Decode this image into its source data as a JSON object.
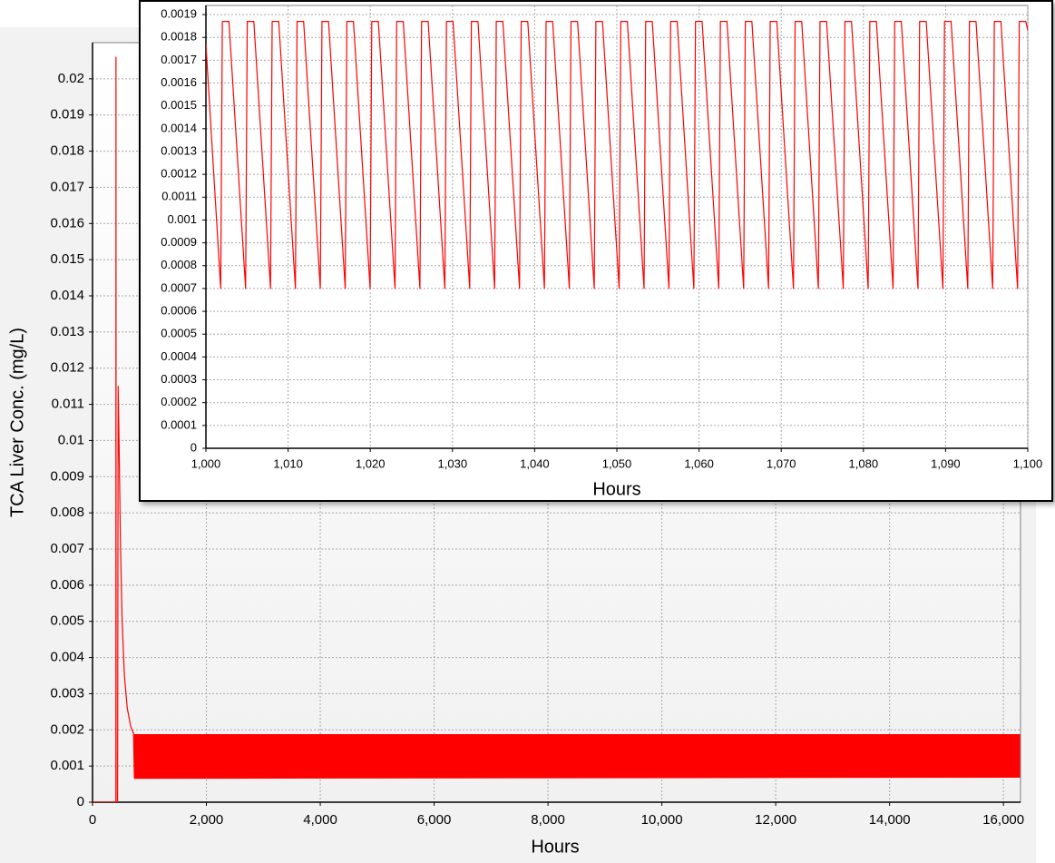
{
  "chart_data": [
    {
      "type": "line",
      "ylabel": "TCA Liver Conc. (mg/L)",
      "xlabel": "Hours",
      "xlim": [
        0,
        16300
      ],
      "ylim": [
        0,
        0.021
      ],
      "xticks": [
        0,
        {
          "value": 2000,
          "label": "2,000"
        },
        {
          "value": 4000,
          "label": "4,000"
        },
        {
          "value": 6000,
          "label": "6,000"
        },
        {
          "value": 8000,
          "label": "8,000"
        },
        {
          "value": 10000,
          "label": "10,000"
        },
        {
          "value": 12000,
          "label": "12,000"
        },
        {
          "value": 14000,
          "label": "14,000"
        },
        {
          "value": 16000,
          "label": "16,000"
        }
      ],
      "yticks": [
        0,
        0.001,
        0.002,
        0.003,
        0.004,
        0.005,
        0.006,
        0.007,
        0.008,
        0.009,
        0.01,
        0.011,
        0.012,
        0.013,
        0.014,
        0.015,
        0.016,
        0.017,
        0.018,
        0.019,
        0.02
      ],
      "grid": true,
      "series": [
        {
          "color": "#ff0000",
          "x": [
            0,
            410,
            412,
            414,
            440,
            450,
            470,
            490,
            520,
            560,
            610,
            670,
            720,
            735
          ],
          "values": [
            0,
            0,
            0.0206,
            0,
            0,
            0.0115,
            0.0095,
            0.0072,
            0.005,
            0.0035,
            0.0026,
            0.0021,
            0.0019,
            0.0007
          ]
        },
        {
          "color": "#ff0000",
          "x": [
            735,
            16284
          ],
          "upper": [
            0.00187,
            0.00187
          ],
          "lower": [
            0.00066,
            0.00069
          ]
        }
      ]
    },
    {
      "type": "line",
      "xlabel": "Hours",
      "xlim": [
        1000,
        1100
      ],
      "ylim": [
        0,
        0.00194
      ],
      "xticks": [
        {
          "value": 1000,
          "label": "1,000"
        },
        {
          "value": 1010,
          "label": "1,010"
        },
        {
          "value": 1020,
          "label": "1,020"
        },
        {
          "value": 1030,
          "label": "1,030"
        },
        {
          "value": 1040,
          "label": "1,040"
        },
        {
          "value": 1050,
          "label": "1,050"
        },
        {
          "value": 1060,
          "label": "1,060"
        },
        {
          "value": 1070,
          "label": "1,070"
        },
        {
          "value": 1080,
          "label": "1,080"
        },
        {
          "value": 1090,
          "label": "1,090"
        },
        {
          "value": 1100,
          "label": "1,100"
        }
      ],
      "yticks": [
        0,
        0.0001,
        0.0002,
        0.0003,
        0.0004,
        0.0005,
        0.0006,
        0.0007,
        0.0008,
        0.0009,
        0.001,
        0.0011,
        0.0012,
        0.0013,
        0.0014,
        0.0015,
        0.0016,
        0.0017,
        0.0018,
        0.0019
      ],
      "grid": true,
      "series": [
        {
          "color": "#ff0000",
          "x": [
            1000,
            1001.8,
            1002,
            1002.8,
            1004.83,
            1005.03,
            1005.83,
            1007.86,
            1008.06,
            1008.86,
            1010.89,
            1011.09,
            1011.89,
            1013.92,
            1014.12,
            1014.92,
            1016.95,
            1017.15,
            1017.95,
            1019.98,
            1020.18,
            1020.98,
            1023.01,
            1023.21,
            1024.01,
            1026.04,
            1026.24,
            1027.04,
            1029.07,
            1029.27,
            1030.07,
            1032.1,
            1032.3,
            1033.1,
            1035.13,
            1035.33,
            1036.13,
            1038.16,
            1038.36,
            1039.16,
            1041.19,
            1041.39,
            1042.19,
            1044.22,
            1044.42,
            1045.22,
            1047.25,
            1047.45,
            1048.25,
            1050.28,
            1050.48,
            1051.28,
            1053.31,
            1053.51,
            1054.31,
            1056.34,
            1056.54,
            1057.34,
            1059.37,
            1059.57,
            1060.37,
            1062.4,
            1062.6,
            1063.4,
            1065.43,
            1065.63,
            1066.43,
            1068.46,
            1068.66,
            1069.46,
            1071.49,
            1071.69,
            1072.49,
            1074.52,
            1074.72,
            1075.52,
            1077.55,
            1077.75,
            1078.55,
            1080.58,
            1080.78,
            1081.58,
            1083.61,
            1083.81,
            1084.61,
            1086.64,
            1086.84,
            1087.64,
            1089.67,
            1089.87,
            1090.67,
            1092.7,
            1092.9,
            1093.7,
            1095.73,
            1095.93,
            1096.73,
            1098.76,
            1098.96,
            1099.76,
            1100
          ],
          "values": [
            0.00177,
            0.0007,
            0.00187,
            0.00187,
            0.0007,
            0.00187,
            0.00187,
            0.0007,
            0.00187,
            0.00187,
            0.0007,
            0.00187,
            0.00187,
            0.0007,
            0.00187,
            0.00187,
            0.0007,
            0.00187,
            0.00187,
            0.0007,
            0.00187,
            0.00187,
            0.0007,
            0.00187,
            0.00187,
            0.0007,
            0.00187,
            0.00187,
            0.0007,
            0.00187,
            0.00187,
            0.0007,
            0.00187,
            0.00187,
            0.0007,
            0.00187,
            0.00187,
            0.0007,
            0.00187,
            0.00187,
            0.0007,
            0.00187,
            0.00187,
            0.0007,
            0.00187,
            0.00187,
            0.0007,
            0.00187,
            0.00187,
            0.0007,
            0.00187,
            0.00187,
            0.0007,
            0.00187,
            0.00187,
            0.0007,
            0.00187,
            0.00187,
            0.0007,
            0.00187,
            0.00187,
            0.0007,
            0.00187,
            0.00187,
            0.0007,
            0.00187,
            0.00187,
            0.0007,
            0.00187,
            0.00187,
            0.0007,
            0.00187,
            0.00187,
            0.0007,
            0.00187,
            0.00187,
            0.0007,
            0.00187,
            0.00187,
            0.0007,
            0.00187,
            0.00187,
            0.0007,
            0.00187,
            0.00187,
            0.0007,
            0.00187,
            0.00187,
            0.0007,
            0.00187,
            0.00187,
            0.0007,
            0.00187,
            0.00187,
            0.0007,
            0.00187,
            0.00187,
            0.0007,
            0.00187,
            0.00187,
            0.00183
          ]
        }
      ]
    }
  ]
}
